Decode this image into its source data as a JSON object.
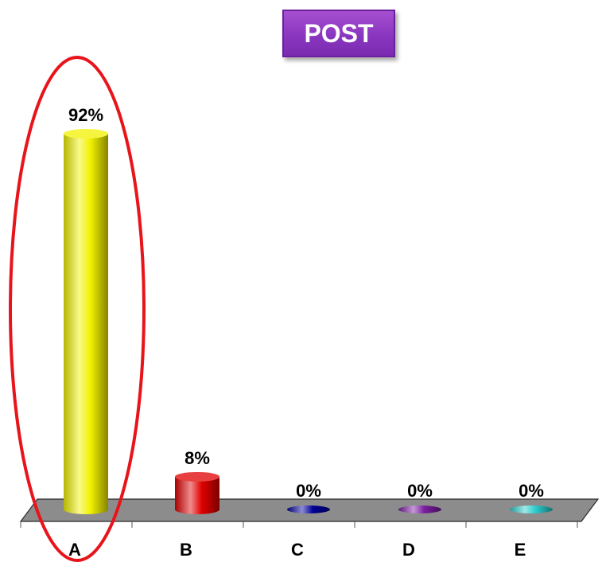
{
  "badge": {
    "label": "POST"
  },
  "chart_data": {
    "type": "bar",
    "categories": [
      "A",
      "B",
      "C",
      "D",
      "E"
    ],
    "values": [
      92,
      8,
      0,
      0,
      0
    ],
    "data_labels": [
      "92%",
      "8%",
      "0%",
      "0%",
      "0%"
    ],
    "ylim": [
      0,
      100
    ],
    "grid": false,
    "colors": [
      "#f2f200",
      "#e00000",
      "#000099",
      "#7a1fa0",
      "#2ccccc"
    ],
    "highlight": {
      "category": "A",
      "shape": "ellipse",
      "color": "#e8141b"
    }
  }
}
